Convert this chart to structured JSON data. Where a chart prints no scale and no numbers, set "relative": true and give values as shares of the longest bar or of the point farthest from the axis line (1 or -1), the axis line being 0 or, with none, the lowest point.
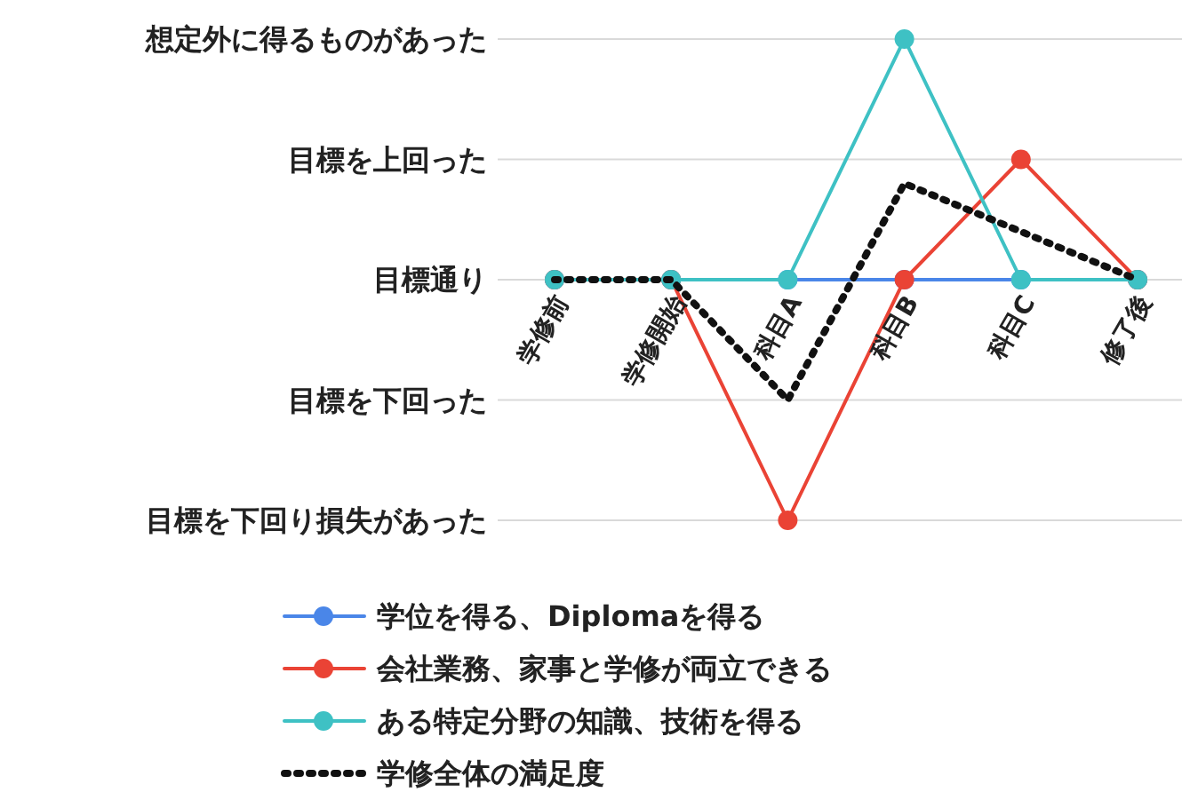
{
  "chart_data": {
    "type": "line",
    "categories": [
      "学修前",
      "学修開始",
      "科目A",
      "科目B",
      "科目C",
      "修了後"
    ],
    "relative": true,
    "ref_lines": [
      {
        "axis": "y",
        "value": 1,
        "label": "想定外に得るものがあった",
        "color": "#d9d9d9"
      },
      {
        "axis": "y",
        "value": 0.5,
        "label": "目標を上回った",
        "color": "#d9d9d9"
      },
      {
        "axis": "y",
        "value": 0,
        "label": "目標通り",
        "color": "#d9d9d9"
      },
      {
        "axis": "y",
        "value": -0.5,
        "label": "目標を下回った",
        "color": "#d9d9d9"
      },
      {
        "axis": "y",
        "value": -1,
        "label": "目標を下回り損失があった",
        "color": "#d9d9d9"
      }
    ],
    "legend": "bottom",
    "marker": "circle",
    "line_style": "solid",
    "series": [
      {
        "name": "学位を得る、Diplomaを得る",
        "color": "#4a86e8",
        "values": [
          0,
          0,
          0,
          0,
          0,
          0
        ]
      },
      {
        "name": "会社業務、家事と学修が両立できる",
        "color": "#ea4335",
        "values": [
          0,
          0,
          -1,
          0,
          0.5,
          0
        ]
      },
      {
        "name": "ある特定分野の知識、技術を得る",
        "color": "#3ec1c4",
        "values": [
          0,
          0,
          0,
          1,
          0,
          0
        ]
      },
      {
        "name": "学修全体の満足度",
        "color": "#111111",
        "values": [
          0,
          0,
          -0.5,
          0.4,
          0.2,
          0
        ],
        "marker": "none",
        "line_style": "dotted"
      }
    ]
  }
}
